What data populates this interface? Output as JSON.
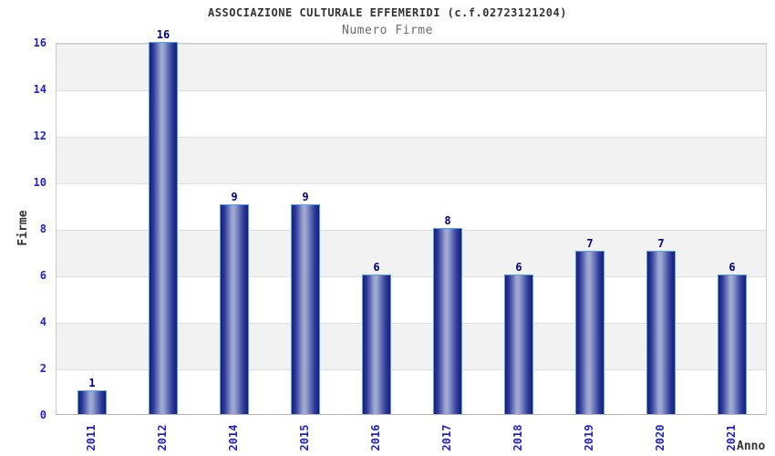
{
  "chart_data": {
    "type": "bar",
    "title": "ASSOCIAZIONE CULTURALE EFFEMERIDI (c.f.02723121204)",
    "subtitle": "Numero Firme",
    "categories": [
      "2011",
      "2012",
      "2014",
      "2015",
      "2016",
      "2017",
      "2018",
      "2019",
      "2020",
      "2021"
    ],
    "values": [
      1,
      16,
      9,
      9,
      6,
      8,
      6,
      7,
      7,
      6
    ],
    "xlabel": "Anno",
    "ylabel": "Firme",
    "ylim": [
      0,
      16
    ],
    "ytick_step": 2,
    "ytick_labels": [
      "0",
      "2",
      "4",
      "6",
      "8",
      "10",
      "12",
      "14",
      "16"
    ],
    "grid": "horizontal alternating bands, gridlines every 2 units",
    "legend": "none",
    "bar_value_labels_shown": true
  },
  "colors": {
    "title": "#333333",
    "subtitle": "#6b6b6b",
    "tick_label": "#2222cc",
    "value_label": "#000080",
    "bar_dark": "#161f7a",
    "bar_light": "#9ea9d2",
    "bar_border": "#55a0ee",
    "band": "#f2f2f2",
    "gridline": "#dddddd",
    "plot_border": "#cccccc"
  }
}
